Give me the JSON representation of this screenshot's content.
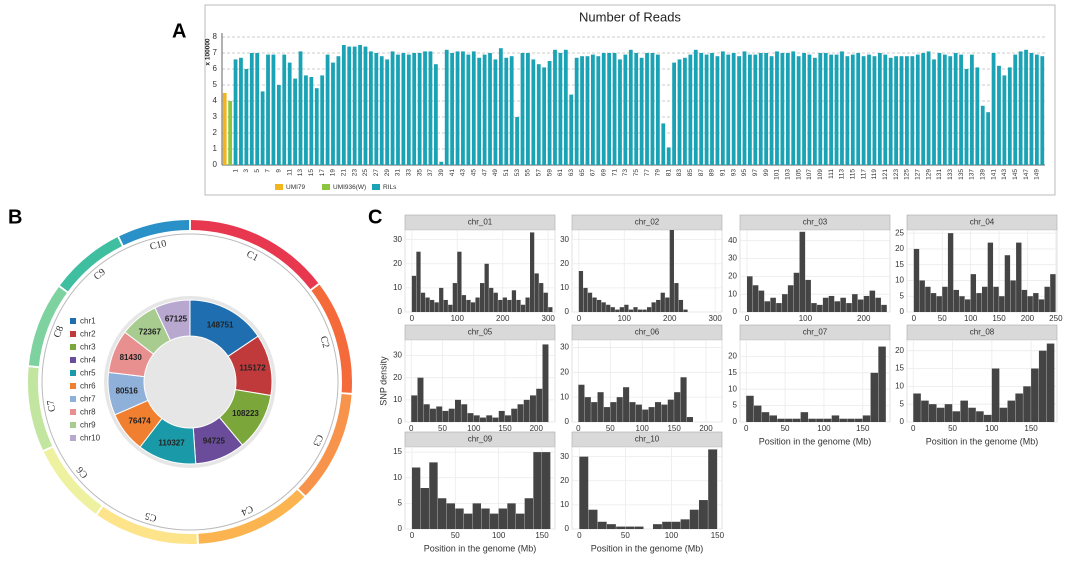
{
  "chart_data": [
    {
      "type": "bar",
      "panel": "A",
      "title": "Number of Reads",
      "ylabel": "x 100000",
      "ylim": [
        0,
        8
      ],
      "yticks": [
        0,
        1,
        2,
        3,
        4,
        5,
        6,
        7,
        8
      ],
      "grid": true,
      "series": [
        {
          "name": "UMI79",
          "color": "#f2b61c",
          "categories": [
            null
          ],
          "values": [
            4.5
          ]
        },
        {
          "name": "UMI936(W)",
          "color": "#8cc63f",
          "categories": [
            null
          ],
          "values": [
            4.0
          ]
        },
        {
          "name": "RILs",
          "color": "#1aa3b5",
          "categories": [
            "1",
            null,
            "3",
            null,
            "5",
            null,
            "7",
            null,
            "9",
            null,
            "11",
            null,
            "13",
            null,
            "15",
            null,
            "17",
            null,
            "19",
            null,
            "21",
            null,
            "23",
            null,
            "25",
            null,
            "27",
            null,
            "29",
            null,
            "31",
            null,
            "33",
            null,
            "35",
            null,
            "37",
            null,
            "39",
            null,
            "41",
            null,
            "43",
            null,
            "45",
            null,
            "47",
            null,
            "49",
            null,
            "51",
            null,
            "53",
            null,
            "55",
            null,
            "57",
            null,
            "59",
            null,
            "61",
            null,
            "63",
            null,
            "65",
            null,
            "67",
            null,
            "69",
            null,
            "71",
            null,
            "73",
            null,
            "75",
            null,
            "77",
            null,
            "79",
            null,
            "81",
            null,
            "83",
            null,
            "85",
            null,
            "87",
            null,
            "89",
            null,
            "91",
            null,
            "93",
            null,
            "95",
            null,
            "97",
            null,
            "99",
            null,
            "101",
            null,
            "103",
            null,
            "105",
            null,
            "107",
            null,
            "109",
            null,
            "111",
            null,
            "113",
            null,
            "115",
            null,
            "117",
            null,
            "119",
            null,
            "121",
            null,
            "123",
            null,
            "125",
            null,
            "127",
            null,
            "129",
            null,
            "131",
            null,
            "133",
            null,
            "135",
            null,
            "137",
            null,
            "139",
            null,
            "141",
            null,
            "143",
            null,
            "145",
            null,
            "147",
            null,
            "149",
            null
          ],
          "values": [
            6.6,
            6.7,
            6.0,
            7.0,
            7.0,
            4.6,
            6.9,
            6.9,
            5.0,
            6.9,
            6.4,
            5.4,
            7.1,
            5.6,
            5.5,
            4.8,
            5.6,
            6.9,
            6.4,
            6.8,
            7.5,
            7.4,
            7.4,
            7.5,
            7.4,
            7.1,
            7.0,
            6.8,
            6.6,
            7.1,
            6.9,
            7.0,
            6.9,
            7.0,
            7.0,
            7.1,
            7.1,
            6.3,
            0.2,
            7.2,
            7.0,
            7.1,
            7.1,
            6.9,
            7.1,
            6.7,
            6.9,
            7.0,
            6.6,
            7.3,
            6.7,
            6.8,
            3.0,
            7.0,
            7.0,
            6.6,
            6.3,
            6.1,
            6.5,
            7.2,
            7.0,
            7.2,
            4.4,
            6.7,
            6.8,
            6.8,
            6.9,
            6.8,
            7.0,
            7.0,
            7.0,
            6.6,
            6.9,
            7.2,
            7.0,
            6.7,
            7.0,
            7.0,
            6.9,
            2.6,
            1.1,
            6.4,
            6.6,
            6.7,
            6.9,
            7.2,
            7.0,
            6.9,
            7.0,
            6.8,
            7.1,
            6.9,
            7.0,
            6.8,
            7.1,
            6.9,
            6.9,
            7.0,
            7.0,
            6.8,
            7.1,
            7.0,
            7.0,
            7.1,
            6.8,
            7.0,
            6.9,
            6.7,
            7.0,
            7.0,
            6.9,
            6.9,
            7.1,
            6.8,
            6.9,
            7.0,
            6.8,
            6.9,
            6.8,
            7.0,
            6.9,
            6.7,
            6.8,
            6.8,
            6.8,
            6.8,
            6.9,
            7.0,
            7.1,
            6.6,
            7.0,
            6.9,
            6.8,
            7.0,
            6.9,
            6.0,
            6.9,
            6.1,
            3.7,
            3.3,
            7.0,
            6.2,
            5.6,
            6.1,
            6.9,
            7.1,
            7.2,
            7.0,
            6.9,
            6.8
          ]
        }
      ]
    },
    {
      "type": "pie",
      "panel": "B",
      "categories": [
        "chr1",
        "chr2",
        "chr3",
        "chr4",
        "chr5",
        "chr6",
        "chr7",
        "chr8",
        "chr9",
        "chr10"
      ],
      "values": [
        148751,
        115172,
        108223,
        94725,
        110327,
        76474,
        80516,
        81430,
        72367,
        67125
      ],
      "colors": [
        "#1f6fb0",
        "#c0393b",
        "#7aa63a",
        "#6b4c9a",
        "#1a9aa8",
        "#f08030",
        "#8fb0d8",
        "#e89090",
        "#a8cc90",
        "#b8a8d0"
      ],
      "ring": {
        "labels": [
          "C1",
          "C2",
          "C3",
          "C4",
          "C5",
          "C6",
          "C7",
          "C8",
          "C9",
          "C10"
        ],
        "values": [
          301,
          237,
          232,
          242,
          217,
          169,
          176,
          175,
          157,
          150
        ],
        "colors": [
          "#e8384f",
          "#f46a3a",
          "#f7934a",
          "#fbb44f",
          "#fde38a",
          "#eef2a0",
          "#c2e6a0",
          "#7ed2a0",
          "#3fbfa0",
          "#2a90c8"
        ]
      }
    },
    {
      "type": "histogram",
      "panel": "C",
      "title": "chr_01",
      "color": "#444444",
      "xlim": [
        -15,
        315
      ],
      "xticks": [
        0,
        100,
        200,
        300
      ],
      "ylim": [
        0,
        34
      ],
      "yticks": [
        0,
        10,
        20,
        30
      ],
      "bins": [
        0,
        10,
        20,
        30,
        40,
        50,
        60,
        70,
        80,
        90,
        100,
        110,
        120,
        130,
        140,
        150,
        160,
        170,
        180,
        190,
        200,
        210,
        220,
        230,
        240,
        250,
        260,
        270,
        280,
        290,
        300,
        310
      ],
      "counts": [
        15,
        25,
        8,
        6,
        5,
        4,
        10,
        5,
        3,
        12,
        25,
        7,
        5,
        4,
        6,
        12,
        20,
        10,
        8,
        5,
        6,
        5,
        9,
        5,
        3,
        6,
        33,
        16,
        12,
        8,
        2
      ]
    },
    {
      "type": "histogram",
      "title": "chr_02",
      "color": "#444444",
      "xlim": [
        -15,
        315
      ],
      "xticks": [
        0,
        100,
        200,
        300
      ],
      "ylim": [
        0,
        34
      ],
      "yticks": [
        0,
        10,
        20,
        30
      ],
      "bins": [
        0,
        10,
        20,
        30,
        40,
        50,
        60,
        70,
        80,
        90,
        100,
        110,
        120,
        130,
        140,
        150,
        160,
        170,
        180,
        190,
        200,
        210,
        220,
        230,
        240,
        250
      ],
      "counts": [
        17,
        10,
        8,
        6,
        5,
        4,
        3,
        2,
        1,
        2,
        3,
        1,
        2,
        1,
        1,
        2,
        4,
        5,
        8,
        6,
        34,
        12,
        5,
        1,
        0
      ]
    },
    {
      "type": "histogram",
      "title": "chr_03",
      "color": "#444444",
      "xlim": [
        -12,
        245
      ],
      "xticks": [
        0,
        100,
        200
      ],
      "ylim": [
        0,
        46
      ],
      "yticks": [
        0,
        10,
        20,
        30,
        40
      ],
      "bins": [
        0,
        10,
        20,
        30,
        40,
        50,
        60,
        70,
        80,
        90,
        100,
        110,
        120,
        130,
        140,
        150,
        160,
        170,
        180,
        190,
        200,
        210,
        220,
        230,
        240
      ],
      "counts": [
        20,
        15,
        12,
        6,
        8,
        5,
        10,
        15,
        22,
        45,
        18,
        5,
        4,
        8,
        9,
        6,
        8,
        5,
        10,
        7,
        9,
        12,
        8,
        4
      ]
    },
    {
      "type": "histogram",
      "title": "chr_04",
      "color": "#444444",
      "xlim": [
        -12,
        252
      ],
      "xticks": [
        0,
        50,
        100,
        150,
        200,
        250
      ],
      "ylim": [
        0,
        26
      ],
      "yticks": [
        0,
        5,
        10,
        15,
        20,
        25
      ],
      "bins": [
        0,
        10,
        20,
        30,
        40,
        50,
        60,
        70,
        80,
        90,
        100,
        110,
        120,
        130,
        140,
        150,
        160,
        170,
        180,
        190,
        200,
        210,
        220,
        230,
        240,
        250
      ],
      "counts": [
        20,
        10,
        8,
        6,
        5,
        8,
        25,
        7,
        5,
        4,
        12,
        6,
        8,
        22,
        8,
        5,
        18,
        10,
        22,
        7,
        5,
        6,
        4,
        8,
        12
      ]
    },
    {
      "type": "histogram",
      "title": "chr_05",
      "ylabel": "SNP density",
      "color": "#444444",
      "xlim": [
        -10,
        230
      ],
      "xticks": [
        0,
        50,
        100,
        150,
        200
      ],
      "ylim": [
        0,
        37
      ],
      "yticks": [
        0,
        10,
        20,
        30
      ],
      "bins": [
        0,
        10,
        20,
        30,
        40,
        50,
        60,
        70,
        80,
        90,
        100,
        110,
        120,
        130,
        140,
        150,
        160,
        170,
        180,
        190,
        200,
        210,
        220
      ],
      "counts": [
        12,
        20,
        8,
        6,
        7,
        5,
        6,
        10,
        8,
        4,
        3,
        2,
        3,
        2,
        5,
        3,
        6,
        8,
        10,
        12,
        15,
        35
      ]
    },
    {
      "type": "histogram",
      "title": "chr_06",
      "color": "#444444",
      "xlim": [
        -10,
        225
      ],
      "xticks": [
        0,
        50,
        100,
        150,
        200
      ],
      "ylim": [
        0,
        33
      ],
      "yticks": [
        0,
        10,
        20,
        30
      ],
      "bins": [
        0,
        10,
        20,
        30,
        40,
        50,
        60,
        70,
        80,
        90,
        100,
        110,
        120,
        130,
        140,
        150,
        160,
        170,
        180
      ],
      "counts": [
        15,
        10,
        8,
        12,
        6,
        8,
        10,
        14,
        8,
        7,
        5,
        6,
        8,
        7,
        9,
        12,
        18,
        2
      ]
    },
    {
      "type": "histogram",
      "title": "chr_07",
      "xlabel": "Position in the genome (Mb)",
      "color": "#444444",
      "xlim": [
        -8,
        185
      ],
      "xticks": [
        0,
        50,
        100,
        150
      ],
      "ylim": [
        0,
        25
      ],
      "yticks": [
        0,
        5,
        10,
        15,
        20
      ],
      "bins": [
        0,
        10,
        20,
        30,
        40,
        50,
        60,
        70,
        80,
        90,
        100,
        110,
        120,
        130,
        140,
        150,
        160,
        170,
        180
      ],
      "counts": [
        8,
        5,
        3,
        2,
        1,
        1,
        1,
        3,
        1,
        1,
        1,
        2,
        1,
        1,
        1,
        2,
        15,
        23
      ]
    },
    {
      "type": "histogram",
      "title": "chr_08",
      "xlabel": "Position in the genome (Mb)",
      "color": "#444444",
      "xlim": [
        -8,
        183
      ],
      "xticks": [
        0,
        50,
        100,
        150
      ],
      "ylim": [
        0,
        23
      ],
      "yticks": [
        0,
        5,
        10,
        15,
        20
      ],
      "bins": [
        0,
        10,
        20,
        30,
        40,
        50,
        60,
        70,
        80,
        90,
        100,
        110,
        120,
        130,
        140,
        150,
        160,
        170,
        180
      ],
      "counts": [
        8,
        6,
        5,
        4,
        5,
        3,
        6,
        4,
        3,
        2,
        15,
        4,
        6,
        8,
        10,
        15,
        20,
        22
      ]
    },
    {
      "type": "histogram",
      "title": "chr_09",
      "xlabel": "Position in the genome (Mb)",
      "color": "#444444",
      "xlim": [
        -8,
        165
      ],
      "xticks": [
        0,
        50,
        100,
        150
      ],
      "ylim": [
        0,
        16
      ],
      "yticks": [
        0,
        5,
        10,
        15
      ],
      "bins": [
        0,
        10,
        20,
        30,
        40,
        50,
        60,
        70,
        80,
        90,
        100,
        110,
        120,
        130,
        140,
        150,
        160
      ],
      "counts": [
        12,
        8,
        13,
        6,
        5,
        4,
        3,
        5,
        4,
        3,
        4,
        5,
        3,
        6,
        15,
        15
      ]
    },
    {
      "type": "histogram",
      "title": "chr_10",
      "xlabel": "Position in the genome (Mb)",
      "color": "#444444",
      "xlim": [
        -8,
        155
      ],
      "xticks": [
        0,
        50,
        100,
        150
      ],
      "ylim": [
        0,
        34
      ],
      "yticks": [
        0,
        10,
        20,
        30
      ],
      "bins": [
        0,
        10,
        20,
        30,
        40,
        50,
        60,
        70,
        80,
        90,
        100,
        110,
        120,
        130,
        140,
        150
      ],
      "counts": [
        30,
        8,
        3,
        2,
        1,
        1,
        1,
        0,
        2,
        3,
        3,
        4,
        8,
        12,
        33
      ]
    }
  ]
}
